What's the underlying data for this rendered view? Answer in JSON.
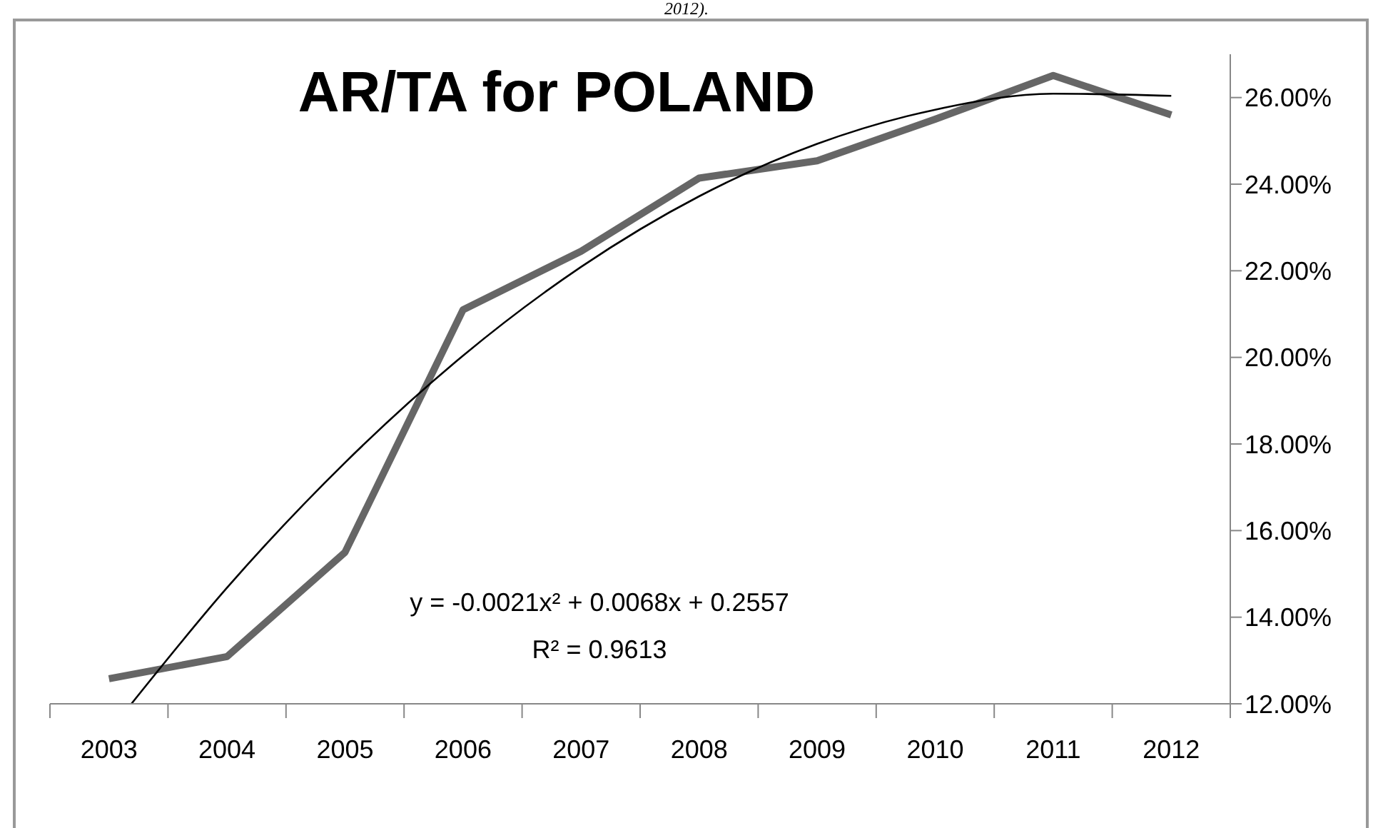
{
  "chart_data": {
    "type": "line",
    "title": "AR/TA for POLAND",
    "x": [
      2003,
      2004,
      2005,
      2006,
      2007,
      2008,
      2009,
      2010,
      2011,
      2012
    ],
    "xlim": [
      2002.5,
      2012.5
    ],
    "xticks": [
      2003,
      2004,
      2005,
      2006,
      2007,
      2008,
      2009,
      2010,
      2011,
      2012
    ],
    "ylim": [
      12,
      27
    ],
    "yticks": [
      {
        "value": 12,
        "label": "12.00%"
      },
      {
        "value": 14,
        "label": "14.00%"
      },
      {
        "value": 16,
        "label": "16.00%"
      },
      {
        "value": 18,
        "label": "18.00%"
      },
      {
        "value": 20,
        "label": "20.00%"
      },
      {
        "value": 22,
        "label": "22.00%"
      },
      {
        "value": 24,
        "label": "24.00%"
      },
      {
        "value": 26,
        "label": "26.00%"
      }
    ],
    "series": [
      {
        "color": "#666666",
        "values": [
          12.58,
          13.09,
          15.5,
          21.1,
          22.45,
          24.14,
          24.54,
          25.5,
          26.51,
          25.6
        ]
      },
      {
        "type": "line",
        "color": "#000000",
        "x": [
          2003.19,
          2004,
          2005,
          2006,
          2007,
          2008,
          2009,
          2010,
          2011,
          2012
        ],
        "values": [
          12.0,
          14.68,
          17.57,
          20.04,
          22.09,
          23.72,
          24.93,
          25.72,
          26.09,
          26.04
        ]
      }
    ],
    "annotations": [
      "2012).",
      "y = -0.0021x² + 0.0068x + 0.2557",
      "R² = 0.9613"
    ],
    "grid": false,
    "marker": "none",
    "line_style": "solid"
  }
}
